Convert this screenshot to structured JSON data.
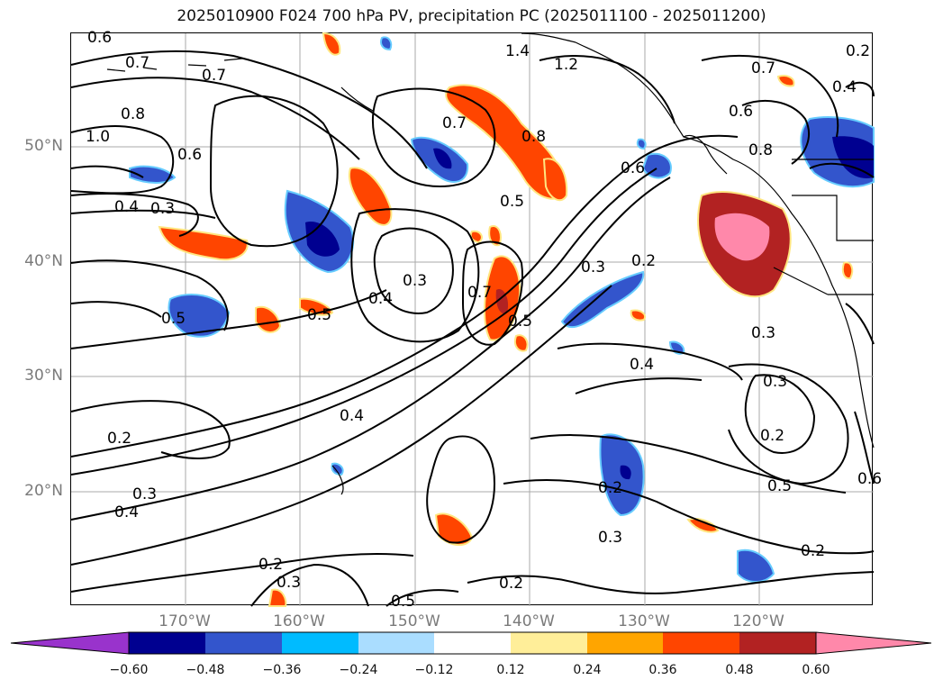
{
  "title": "2025010900 F024 700 hPa PV, precipitation PC (2025011100 - 2025011200)",
  "lat_labels": [
    "50°N",
    "40°N",
    "30°N",
    "20°N"
  ],
  "lon_labels": [
    "170°W",
    "160°W",
    "150°W",
    "140°W",
    "130°W",
    "120°W"
  ],
  "colorbar": {
    "colors": [
      "#9933cc",
      "#000090",
      "#3355cc",
      "#00bbff",
      "#aaddff",
      "#ffffff",
      "#ffee99",
      "#ffa500",
      "#ff4500",
      "#b22222",
      "#ff88aa"
    ],
    "ticks": [
      "−0.60",
      "−0.48",
      "−0.36",
      "−0.24",
      "−0.12",
      "0.12",
      "0.24",
      "0.36",
      "0.48",
      "0.60"
    ]
  },
  "contour_labels": [
    {
      "text": "0.6"
    },
    {
      "text": "0.7"
    },
    {
      "text": "0.7"
    },
    {
      "text": "0.8"
    },
    {
      "text": "1.0"
    },
    {
      "text": "0.6"
    },
    {
      "text": "0.4"
    },
    {
      "text": "0.3"
    },
    {
      "text": "0.5"
    },
    {
      "text": "0.5"
    },
    {
      "text": "0.4"
    },
    {
      "text": "0.3"
    },
    {
      "text": "0.7"
    },
    {
      "text": "0.5"
    },
    {
      "text": "0.7"
    },
    {
      "text": "0.8"
    },
    {
      "text": "0.5"
    },
    {
      "text": "1.4"
    },
    {
      "text": "1.2"
    },
    {
      "text": "0.6"
    },
    {
      "text": "0.3"
    },
    {
      "text": "0.2"
    },
    {
      "text": "0.4"
    },
    {
      "text": "0.7"
    },
    {
      "text": "0.6"
    },
    {
      "text": "0.8"
    },
    {
      "text": "0.4"
    },
    {
      "text": "0.4"
    },
    {
      "text": "0.2"
    },
    {
      "text": "0.3"
    },
    {
      "text": "0.4"
    },
    {
      "text": "0.2"
    },
    {
      "text": "0.3"
    },
    {
      "text": "0.3"
    },
    {
      "text": "0.2"
    },
    {
      "text": "0.5"
    },
    {
      "text": "0.2"
    },
    {
      "text": "0.2"
    },
    {
      "text": "0.3"
    },
    {
      "text": "0.2"
    },
    {
      "text": "0.2"
    },
    {
      "text": "0.6"
    },
    {
      "text": "0.5"
    },
    {
      "text": "0.3"
    }
  ]
}
